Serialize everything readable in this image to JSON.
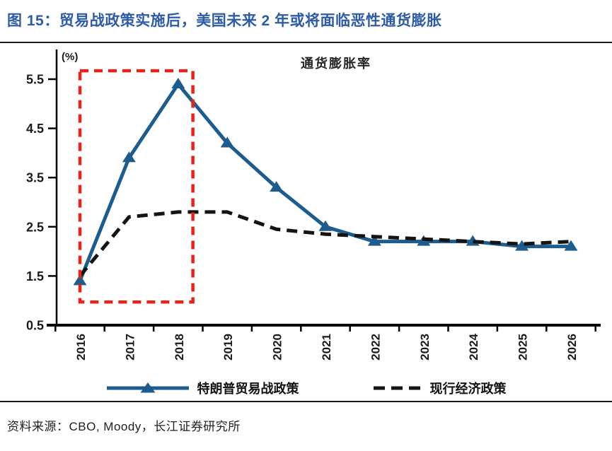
{
  "figure": {
    "title": "图 15：贸易战政策实施后，美国未来 2 年或将面临恶性通货膨胀",
    "source": "资料来源：CBO, Moody，长江证券研究所"
  },
  "chart_data": {
    "type": "line",
    "title": "通货膨胀率",
    "y_unit_label": "(%)",
    "categories": [
      "2016",
      "2017",
      "2018",
      "2019",
      "2020",
      "2021",
      "2022",
      "2023",
      "2024",
      "2025",
      "2026"
    ],
    "y_ticks": [
      0.5,
      1.5,
      2.5,
      3.5,
      4.5,
      5.5
    ],
    "ylim": [
      0.5,
      6.0
    ],
    "grid": false,
    "legend_position": "bottom",
    "axis_color": "#000000",
    "series": [
      {
        "name": "特朗普贸易战政策",
        "color": "#1f5c8e",
        "line_style": "solid",
        "marker": "triangle-up",
        "values": [
          1.4,
          3.9,
          5.4,
          4.2,
          3.3,
          2.5,
          2.2,
          2.2,
          2.2,
          2.1,
          2.1
        ]
      },
      {
        "name": "现行经济政策",
        "color": "#141414",
        "line_style": "dashed",
        "marker": "none",
        "values": [
          1.5,
          2.7,
          2.8,
          2.8,
          2.45,
          2.35,
          2.3,
          2.25,
          2.2,
          2.15,
          2.2
        ]
      }
    ],
    "annotations": [
      {
        "type": "rect",
        "line_style": "dashed",
        "color": "#e8231a",
        "x_from_category": "2016",
        "x_to_category": "2018",
        "x_index_range": [
          0,
          2.3
        ],
        "y_range": [
          0.97,
          5.67
        ]
      }
    ]
  },
  "colors": {
    "title_blue": "#2d5ba6",
    "rule_dark": "#1a1a1a",
    "background": "#ffffff"
  }
}
